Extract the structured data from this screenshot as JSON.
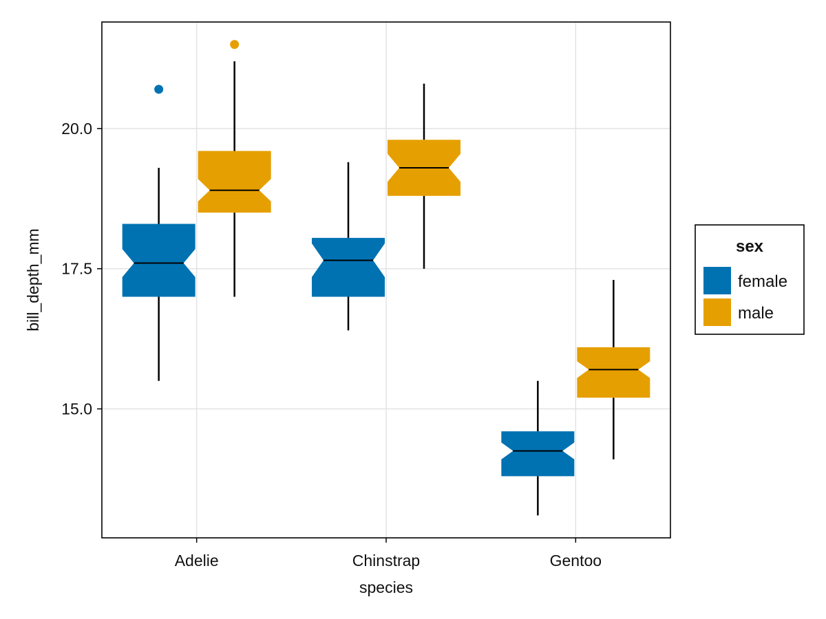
{
  "chart_data": {
    "type": "boxplot",
    "notched": true,
    "title": "",
    "xlabel": "species",
    "ylabel": "bill_depth_mm",
    "categories": [
      "Adelie",
      "Chinstrap",
      "Gentoo"
    ],
    "ylim": [
      12.7,
      21.9
    ],
    "yticks": [
      15.0,
      17.5,
      20.0
    ],
    "ytick_labels": [
      "15.0",
      "17.5",
      "20.0"
    ],
    "grid": true,
    "legend": {
      "title": "sex",
      "position": "right"
    },
    "series": [
      {
        "name": "female",
        "color": "#0072B2",
        "boxes": [
          {
            "category": "Adelie",
            "whisker_low": 15.5,
            "q1": 17.0,
            "median": 17.6,
            "q3": 18.3,
            "whisker_high": 19.3,
            "notch_low": 17.35,
            "notch_high": 17.85,
            "outliers": [
              20.7
            ]
          },
          {
            "category": "Chinstrap",
            "whisker_low": 16.4,
            "q1": 17.0,
            "median": 17.65,
            "q3": 18.05,
            "whisker_high": 19.4,
            "notch_low": 17.35,
            "notch_high": 17.95,
            "outliers": []
          },
          {
            "category": "Gentoo",
            "whisker_low": 13.1,
            "q1": 13.8,
            "median": 14.25,
            "q3": 14.6,
            "whisker_high": 15.5,
            "notch_low": 14.1,
            "notch_high": 14.4,
            "outliers": []
          }
        ]
      },
      {
        "name": "male",
        "color": "#E69F00",
        "boxes": [
          {
            "category": "Adelie",
            "whisker_low": 17.0,
            "q1": 18.5,
            "median": 18.9,
            "q3": 19.6,
            "whisker_high": 21.2,
            "notch_low": 18.7,
            "notch_high": 19.1,
            "outliers": [
              21.5
            ]
          },
          {
            "category": "Chinstrap",
            "whisker_low": 17.5,
            "q1": 18.8,
            "median": 19.3,
            "q3": 19.8,
            "whisker_high": 20.8,
            "notch_low": 19.05,
            "notch_high": 19.55,
            "outliers": []
          },
          {
            "category": "Gentoo",
            "whisker_low": 14.1,
            "q1": 15.2,
            "median": 15.7,
            "q3": 16.1,
            "whisker_high": 17.3,
            "notch_low": 15.55,
            "notch_high": 15.85,
            "outliers": []
          }
        ]
      }
    ]
  }
}
